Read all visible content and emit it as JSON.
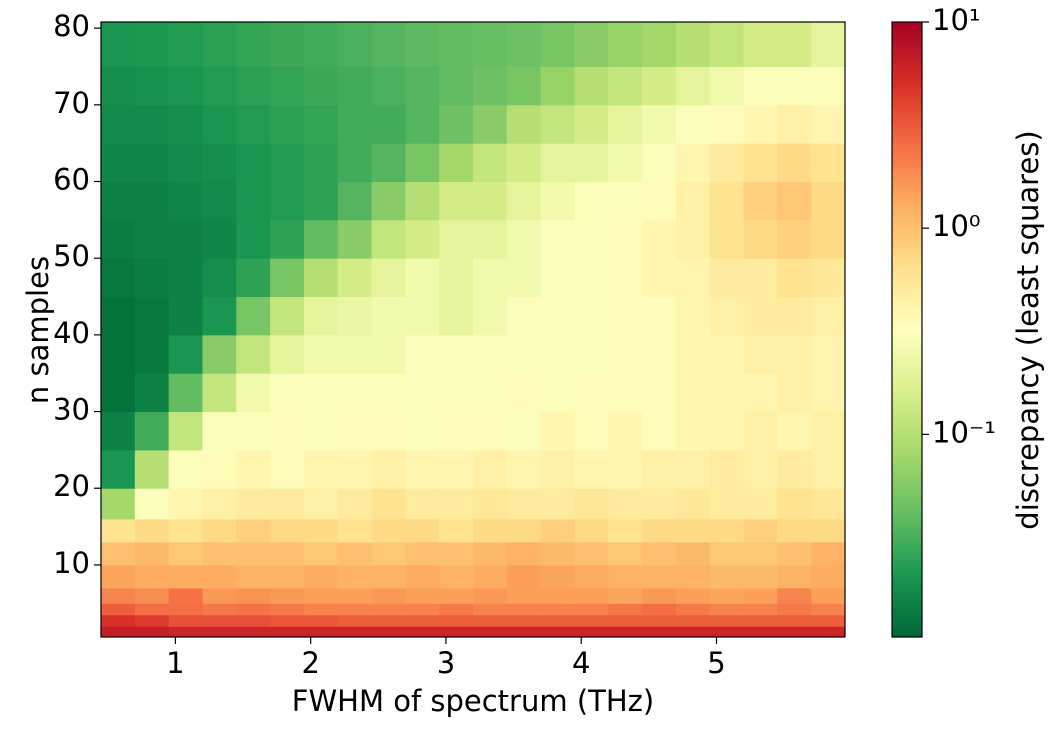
{
  "chart_data": {
    "type": "heatmap",
    "x_label": "FWHM of spectrum (THz)",
    "y_label": "n samples",
    "xlim": [
      0.45,
      5.95
    ],
    "ylim": [
      0.6,
      80.8
    ],
    "xticks": [
      1,
      2,
      3,
      4,
      5
    ],
    "yticks": [
      10,
      20,
      30,
      40,
      50,
      60,
      70,
      80
    ],
    "xbins": [
      0.45,
      0.7,
      0.95,
      1.2,
      1.45,
      1.7,
      1.95,
      2.2,
      2.45,
      2.7,
      2.95,
      3.2,
      3.45,
      3.7,
      3.95,
      4.2,
      4.45,
      4.7,
      4.95,
      5.2,
      5.45,
      5.7,
      5.95
    ],
    "ybins": [
      0.6,
      2,
      3.5,
      5,
      7,
      10,
      13,
      16,
      20,
      25,
      30,
      35,
      40,
      45,
      50,
      55,
      60,
      65,
      70,
      75,
      80.8
    ],
    "z": [
      [
        6.5,
        6.5,
        6,
        6,
        6,
        6,
        6,
        6,
        6,
        6,
        6,
        6,
        6,
        6,
        6,
        6,
        6,
        6,
        6,
        6,
        6,
        6
      ],
      [
        5,
        4.5,
        3.5,
        3.5,
        3.5,
        3.2,
        3.2,
        3,
        3,
        3,
        3,
        3,
        3,
        3,
        3,
        3,
        3,
        3,
        3,
        3,
        3,
        3
      ],
      [
        3,
        2.5,
        2.5,
        2.3,
        2.4,
        2.2,
        2,
        2,
        2,
        2,
        2.2,
        2,
        2,
        2,
        2,
        2.3,
        2.5,
        2.2,
        2,
        2,
        2.2,
        2
      ],
      [
        2,
        1.8,
        2.4,
        1.6,
        1.7,
        1.6,
        1.5,
        1.5,
        1.6,
        1.5,
        1.5,
        1.6,
        1.5,
        1.5,
        1.5,
        1.4,
        1.6,
        1.5,
        1.4,
        1.5,
        2,
        1.5
      ],
      [
        1.4,
        1.3,
        1.3,
        1.3,
        1.2,
        1.2,
        1.3,
        1.2,
        1.2,
        1.3,
        1.2,
        1.3,
        1.5,
        1.4,
        1.3,
        1.2,
        1.2,
        1.2,
        1.1,
        1.1,
        1.2,
        1.3
      ],
      [
        1,
        1.1,
        0.9,
        1,
        1,
        1,
        0.9,
        1,
        0.9,
        1,
        1,
        1.1,
        1.2,
        1.1,
        1,
        0.9,
        1,
        1.1,
        0.9,
        0.9,
        1,
        1.2
      ],
      [
        0.6,
        0.7,
        0.6,
        0.7,
        0.8,
        0.7,
        0.7,
        0.6,
        0.7,
        0.7,
        0.6,
        0.7,
        0.7,
        0.8,
        0.7,
        0.6,
        0.7,
        0.7,
        0.7,
        0.8,
        0.7,
        0.7
      ],
      [
        0.08,
        0.3,
        0.4,
        0.45,
        0.5,
        0.5,
        0.45,
        0.5,
        0.6,
        0.5,
        0.5,
        0.55,
        0.5,
        0.5,
        0.55,
        0.5,
        0.5,
        0.55,
        0.5,
        0.5,
        0.6,
        0.55
      ],
      [
        0.02,
        0.1,
        0.3,
        0.35,
        0.4,
        0.35,
        0.4,
        0.4,
        0.45,
        0.4,
        0.4,
        0.45,
        0.4,
        0.45,
        0.4,
        0.4,
        0.45,
        0.45,
        0.5,
        0.45,
        0.5,
        0.45
      ],
      [
        0.015,
        0.03,
        0.12,
        0.3,
        0.3,
        0.35,
        0.3,
        0.35,
        0.35,
        0.3,
        0.35,
        0.35,
        0.3,
        0.4,
        0.35,
        0.4,
        0.35,
        0.4,
        0.4,
        0.45,
        0.4,
        0.45
      ],
      [
        0.012,
        0.015,
        0.04,
        0.12,
        0.25,
        0.3,
        0.3,
        0.3,
        0.3,
        0.3,
        0.3,
        0.3,
        0.35,
        0.3,
        0.35,
        0.35,
        0.35,
        0.4,
        0.4,
        0.4,
        0.45,
        0.4
      ],
      [
        0.012,
        0.013,
        0.02,
        0.06,
        0.12,
        0.2,
        0.25,
        0.25,
        0.25,
        0.3,
        0.3,
        0.3,
        0.3,
        0.3,
        0.3,
        0.35,
        0.35,
        0.4,
        0.4,
        0.45,
        0.45,
        0.4
      ],
      [
        0.012,
        0.013,
        0.015,
        0.02,
        0.05,
        0.12,
        0.2,
        0.22,
        0.25,
        0.25,
        0.2,
        0.25,
        0.3,
        0.3,
        0.3,
        0.35,
        0.35,
        0.4,
        0.45,
        0.5,
        0.5,
        0.45
      ],
      [
        0.013,
        0.014,
        0.015,
        0.018,
        0.025,
        0.05,
        0.1,
        0.15,
        0.2,
        0.25,
        0.2,
        0.25,
        0.25,
        0.3,
        0.3,
        0.35,
        0.4,
        0.4,
        0.5,
        0.5,
        0.6,
        0.55
      ],
      [
        0.014,
        0.015,
        0.015,
        0.016,
        0.02,
        0.025,
        0.04,
        0.06,
        0.12,
        0.15,
        0.2,
        0.2,
        0.25,
        0.3,
        0.3,
        0.35,
        0.4,
        0.45,
        0.6,
        0.7,
        0.8,
        0.7
      ],
      [
        0.015,
        0.015,
        0.016,
        0.017,
        0.02,
        0.022,
        0.025,
        0.035,
        0.06,
        0.1,
        0.15,
        0.15,
        0.2,
        0.25,
        0.3,
        0.3,
        0.35,
        0.45,
        0.6,
        0.8,
        0.9,
        0.7
      ],
      [
        0.016,
        0.016,
        0.017,
        0.018,
        0.02,
        0.022,
        0.025,
        0.03,
        0.035,
        0.05,
        0.08,
        0.12,
        0.15,
        0.2,
        0.2,
        0.25,
        0.3,
        0.4,
        0.5,
        0.6,
        0.7,
        0.6
      ],
      [
        0.017,
        0.017,
        0.018,
        0.02,
        0.022,
        0.024,
        0.026,
        0.03,
        0.03,
        0.035,
        0.045,
        0.06,
        0.1,
        0.12,
        0.15,
        0.2,
        0.25,
        0.3,
        0.35,
        0.4,
        0.45,
        0.4
      ],
      [
        0.018,
        0.019,
        0.02,
        0.022,
        0.024,
        0.026,
        0.028,
        0.03,
        0.032,
        0.035,
        0.04,
        0.045,
        0.05,
        0.07,
        0.1,
        0.12,
        0.15,
        0.2,
        0.25,
        0.3,
        0.3,
        0.3
      ],
      [
        0.02,
        0.021,
        0.022,
        0.024,
        0.026,
        0.028,
        0.03,
        0.032,
        0.035,
        0.038,
        0.04,
        0.042,
        0.045,
        0.05,
        0.06,
        0.07,
        0.08,
        0.1,
        0.12,
        0.15,
        0.15,
        0.2
      ]
    ],
    "colorbar": {
      "label": "discrepancy (least squares)",
      "scale": "log",
      "lim": [
        0.0104,
        10
      ],
      "ticks": [
        {
          "value": 0.1,
          "label": "10⁻¹"
        },
        {
          "value": 1,
          "label": "10⁰"
        },
        {
          "value": 10,
          "label": "10¹"
        }
      ],
      "colors": [
        "#006837",
        "#1a9850",
        "#66bd63",
        "#a6d96a",
        "#d9ef8b",
        "#ffffbf",
        "#fee08b",
        "#fdae61",
        "#f46d43",
        "#d73027",
        "#a50026"
      ]
    }
  }
}
